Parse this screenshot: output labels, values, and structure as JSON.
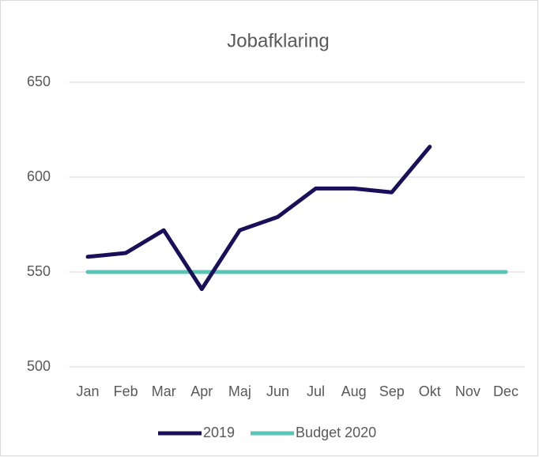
{
  "chart_data": {
    "type": "line",
    "title": "Jobafklaring",
    "categories": [
      "Jan",
      "Feb",
      "Mar",
      "Apr",
      "Maj",
      "Jun",
      "Jul",
      "Aug",
      "Sep",
      "Okt",
      "Nov",
      "Dec"
    ],
    "series": [
      {
        "name": "2019",
        "color": "#1a1059",
        "values": [
          558,
          560,
          572,
          541,
          572,
          579,
          594,
          594,
          592,
          616,
          null,
          null
        ]
      },
      {
        "name": "Budget 2020",
        "color": "#5bc4b4",
        "values": [
          550,
          550,
          550,
          550,
          550,
          550,
          550,
          550,
          550,
          550,
          550,
          550
        ]
      }
    ],
    "ylim": [
      500,
      650
    ],
    "yticks": [
      500,
      550,
      600,
      650
    ],
    "grid": true,
    "legend": "bottom"
  }
}
